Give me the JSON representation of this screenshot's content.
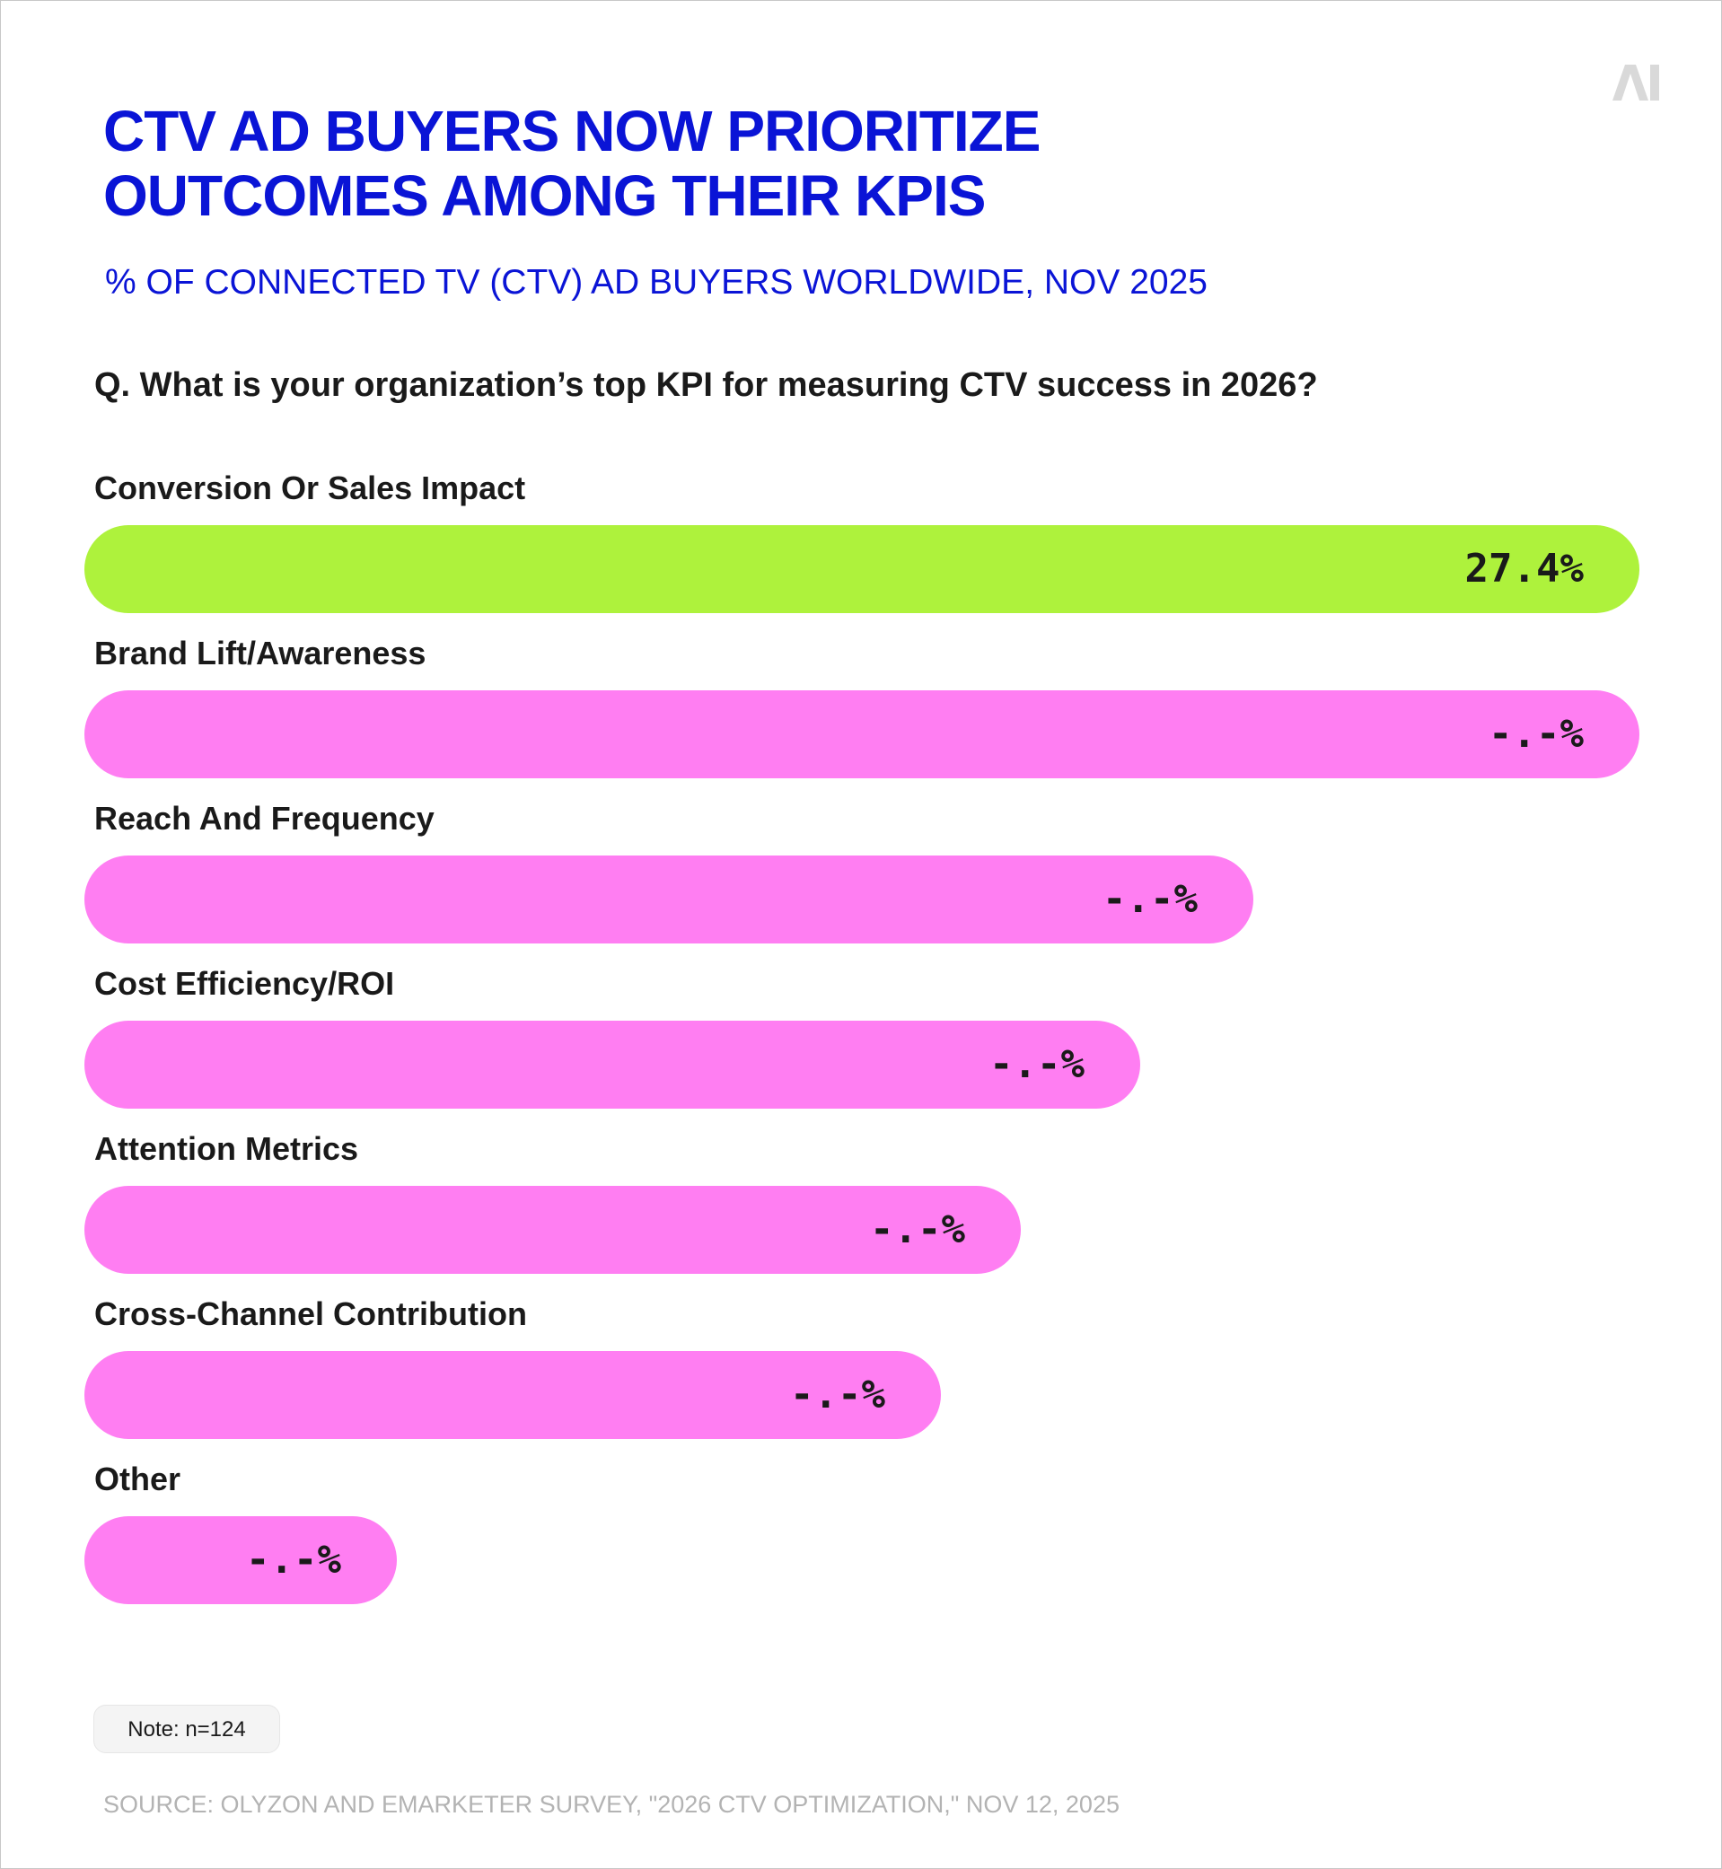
{
  "title_lines": [
    "CTV AD BUYERS NOW PRIORITIZE",
    "OUTCOMES AMONG THEIR KPIS"
  ],
  "subtitle": "% OF CONNECTED TV (CTV) AD BUYERS WORLDWIDE, NOV 2025",
  "question": "Q. What is your organization’s top KPI for measuring CTV success in 2026?",
  "logo": {
    "icon": "ai-logo-icon",
    "color": "#d9d9d9"
  },
  "note": "Note: n=124",
  "source": "SOURCE: OLYZON AND EMARKETER SURVEY, \"2026 CTV OPTIMIZATION,\" NOV 12, 2025",
  "colors": {
    "title": "#0a14d6",
    "highlight": "#aef23c",
    "bar": "#ff7ef2",
    "text": "#1a1a1a"
  },
  "chart_data": {
    "type": "bar",
    "orientation": "horizontal",
    "title": "CTV AD BUYERS NOW PRIORITIZE OUTCOMES AMONG THEIR KPIS",
    "subtitle": "% OF CONNECTED TV (CTV) AD BUYERS WORLDWIDE, NOV 2025",
    "categories": [
      "Conversion Or Sales Impact",
      "Brand Lift/Awareness",
      "Reach And Frequency",
      "Cost Efficiency/ROI",
      "Attention Metrics",
      "Cross-Channel Contribution",
      "Other"
    ],
    "values": [
      27.4,
      27.4,
      20.6,
      18.6,
      16.5,
      15.1,
      5.5
    ],
    "value_labels": [
      "27.4%",
      "-.-%",
      "-.-%",
      "-.-%",
      "-.-%",
      "-.-%",
      "-.-%"
    ],
    "highlight_index": 0,
    "unit": "%"
  }
}
